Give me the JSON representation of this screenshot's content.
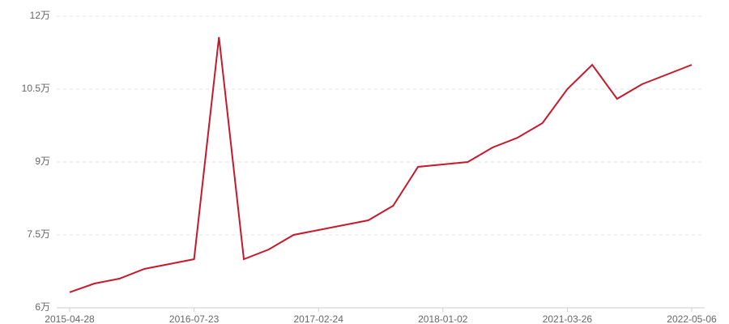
{
  "chart_data": {
    "type": "line",
    "categories": [
      "2015-04-28",
      null,
      null,
      null,
      null,
      "2016-07-23",
      null,
      null,
      null,
      null,
      "2017-02-24",
      null,
      null,
      null,
      null,
      "2018-01-02",
      null,
      null,
      null,
      null,
      "2021-03-26",
      null,
      null,
      null,
      null,
      "2022-05-06"
    ],
    "series": [
      {
        "color": "#c41a2c",
        "values": [
          6.32,
          6.5,
          6.6,
          6.8,
          6.9,
          7.0,
          11.57,
          7.0,
          7.2,
          7.5,
          7.6,
          7.7,
          7.8,
          8.1,
          8.9,
          8.95,
          9.0,
          9.3,
          9.5,
          9.8,
          10.5,
          11.0,
          10.3,
          10.6,
          10.8,
          11.0
        ]
      }
    ],
    "ylim": [
      6,
      12
    ],
    "yticks": [
      {
        "value": 6,
        "label": "6万"
      },
      {
        "value": 7.5,
        "label": "7.5万"
      },
      {
        "value": 9,
        "label": "9万"
      },
      {
        "value": 10.5,
        "label": "10.5万"
      },
      {
        "value": 12,
        "label": "12万"
      }
    ],
    "grid": true
  }
}
